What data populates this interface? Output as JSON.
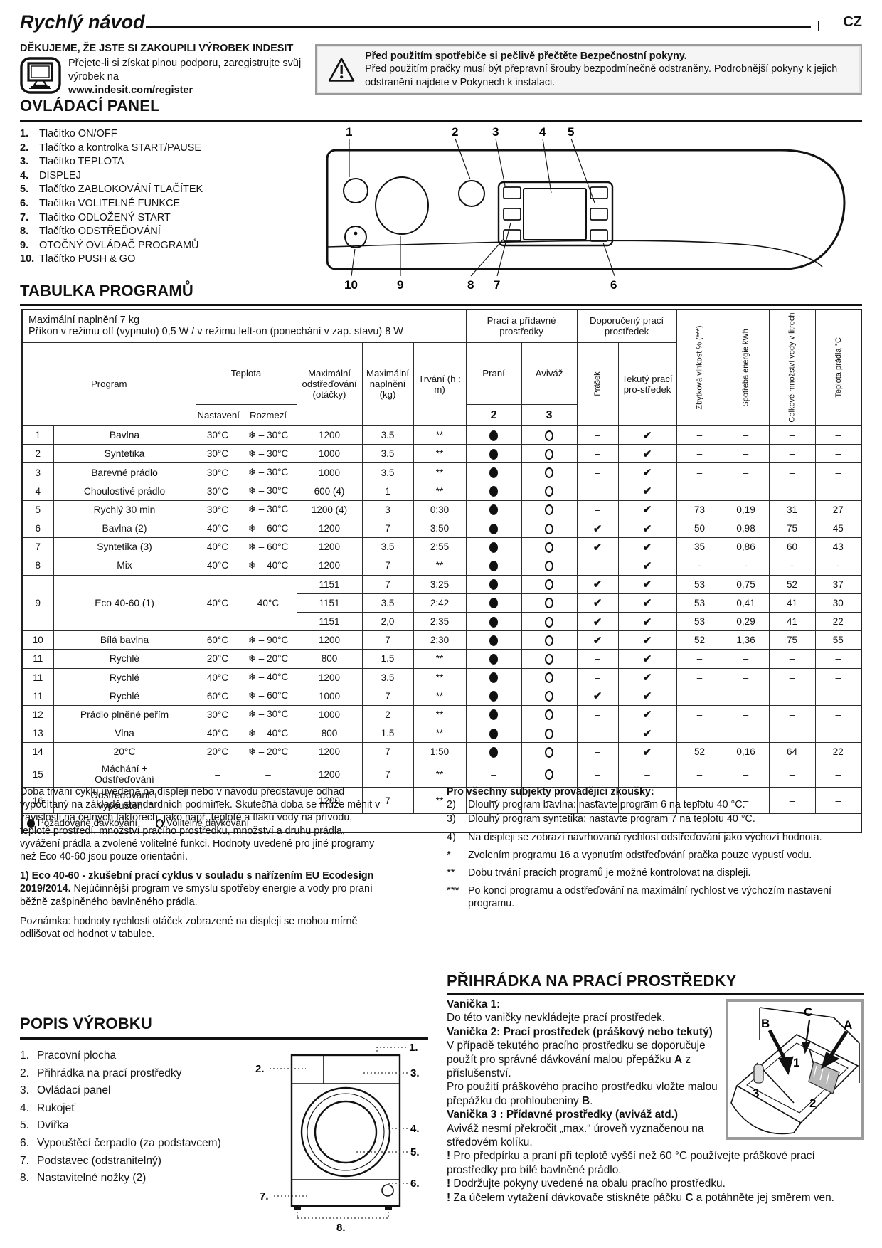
{
  "header": {
    "title": "Rychlý návod",
    "lang": "CZ"
  },
  "intro": {
    "thanks": "DĚKUJEME, ŽE JSTE SI ZAKOUPILI VÝROBEK INDESIT",
    "body": "Přejete-li si získat plnou podporu, zaregistrujte svůj výrobek na",
    "url": "www.indesit.com/register"
  },
  "warning": {
    "title": "Před použitím spotřebiče si pečlivě přečtěte Bezpečnostní pokyny.",
    "body": "Před použitím pračky musí být přepravní šrouby bezpodmínečně odstraněny. Podrobnější pokyny k jejich odstranění najdete v Pokynech k instalaci."
  },
  "control_panel": {
    "heading": "OVLÁDACÍ PANEL",
    "items": [
      {
        "num": "1.",
        "label": "Tlačítko ON/OFF"
      },
      {
        "num": "2.",
        "label": "Tlačítko a kontrolka START/PAUSE"
      },
      {
        "num": "3.",
        "label": "Tlačítko TEPLOTA"
      },
      {
        "num": "4.",
        "label": "DISPLEJ"
      },
      {
        "num": "5.",
        "label": "Tlačítko ZABLOKOVÁNÍ TLAČÍTEK"
      },
      {
        "num": "6.",
        "label": "Tlačítka VOLITELNÉ FUNKCE"
      },
      {
        "num": "7.",
        "label": "Tlačítko ODLOŽENÝ START"
      },
      {
        "num": "8.",
        "label": "Tlačítko ODSTŘEĎOVÁNÍ"
      },
      {
        "num": "9.",
        "label": "OTOČNÝ OVLÁDAČ PROGRAMŮ"
      },
      {
        "num": "10.",
        "label": "Tlačítko PUSH & GO"
      }
    ],
    "top_nums": [
      "1",
      "2",
      "3",
      "4",
      "5"
    ],
    "bottom_nums": [
      "10",
      "9",
      "8",
      "7",
      "6"
    ]
  },
  "program_table": {
    "heading": "TABULKA PROGRAMŮ",
    "info1": "Maximální naplnění 7 kg",
    "info2": "Příkon v režimu off (vypnuto) 0,5 W / v režimu left-on (ponechání v zap. stavu) 8 W",
    "group_detergents": "Prací a přídavné prostředky",
    "group_recommended": "Doporučený prací prostředek",
    "col_program": "Program",
    "col_temp": "Teplota",
    "col_temp_set": "Nastavení",
    "col_temp_range": "Rozmezí",
    "col_spin": "Maximální odstřeďování (otáčky)",
    "col_load": "Maximální naplnění (kg)",
    "col_duration": "Trvání (h : m)",
    "col_wash": "Praní",
    "col_wash_num": "2",
    "col_softener": "Aviváž",
    "col_softener_num": "3",
    "col_powder": "Prášek",
    "col_liquid": "Tekutý prací pro-středek",
    "col_humidity": "Zbytková vlhkost % (***)",
    "col_energy": "Spotřeba energie kWh",
    "col_water": "Celkové množství vody v litrech",
    "col_laundry_temp": "Teplota prádla °C",
    "rows": [
      {
        "num": "1",
        "name": "Bavlna",
        "set": "30°C",
        "range": "❄ – 30°C",
        "spin": "1200",
        "load": "3.5",
        "dur": "**",
        "wash": "●",
        "soft": "○",
        "powder": "–",
        "liquid": "✔",
        "vals": [
          "–",
          "–",
          "–",
          "–"
        ]
      },
      {
        "num": "2",
        "name": "Syntetika",
        "set": "30°C",
        "range": "❄ – 30°C",
        "spin": "1000",
        "load": "3.5",
        "dur": "**",
        "wash": "●",
        "soft": "○",
        "powder": "–",
        "liquid": "✔",
        "vals": [
          "–",
          "–",
          "–",
          "–"
        ]
      },
      {
        "num": "3",
        "name": "Barevné prádlo",
        "set": "30°C",
        "range": "❄ – 30°C",
        "spin": "1000",
        "load": "3.5",
        "dur": "**",
        "wash": "●",
        "soft": "○",
        "powder": "–",
        "liquid": "✔",
        "vals": [
          "–",
          "–",
          "–",
          "–"
        ]
      },
      {
        "num": "4",
        "name": "Choulostivé prádlo",
        "set": "30°C",
        "range": "❄ – 30°C",
        "spin": "600 (4)",
        "load": "1",
        "dur": "**",
        "wash": "●",
        "soft": "○",
        "powder": "–",
        "liquid": "✔",
        "vals": [
          "–",
          "–",
          "–",
          "–"
        ]
      },
      {
        "num": "5",
        "name": "Rychlý 30 min",
        "set": "30°C",
        "range": "❄ – 30°C",
        "spin": "1200 (4)",
        "load": "3",
        "dur": "0:30",
        "wash": "●",
        "soft": "○",
        "powder": "–",
        "liquid": "✔",
        "vals": [
          "73",
          "0,19",
          "31",
          "27"
        ]
      },
      {
        "num": "6",
        "name": "Bavlna (2)",
        "set": "40°C",
        "range": "❄ – 60°C",
        "spin": "1200",
        "load": "7",
        "dur": "3:50",
        "wash": "●",
        "soft": "○",
        "powder": "✔",
        "liquid": "✔",
        "vals": [
          "50",
          "0,98",
          "75",
          "45"
        ]
      },
      {
        "num": "7",
        "name": "Syntetika (3)",
        "set": "40°C",
        "range": "❄ – 60°C",
        "spin": "1200",
        "load": "3.5",
        "dur": "2:55",
        "wash": "●",
        "soft": "○",
        "powder": "✔",
        "liquid": "✔",
        "vals": [
          "35",
          "0,86",
          "60",
          "43"
        ]
      },
      {
        "num": "8",
        "name": "Mix",
        "set": "40°C",
        "range": "❄ – 40°C",
        "spin": "1200",
        "load": "7",
        "dur": "**",
        "wash": "●",
        "soft": "○",
        "powder": "–",
        "liquid": "✔",
        "vals": [
          "-",
          "-",
          "-",
          "-"
        ]
      },
      {
        "num": "9",
        "name": "Eco 40-60 (1)",
        "set": "40°C",
        "range": "40°C",
        "variants": [
          {
            "spin": "1151",
            "load": "7",
            "dur": "3:25",
            "wash": "●",
            "soft": "○",
            "powder": "✔",
            "liquid": "✔",
            "vals": [
              "53",
              "0,75",
              "52",
              "37"
            ]
          },
          {
            "spin": "1151",
            "load": "3.5",
            "dur": "2:42",
            "wash": "●",
            "soft": "○",
            "powder": "✔",
            "liquid": "✔",
            "vals": [
              "53",
              "0,41",
              "41",
              "30"
            ]
          },
          {
            "spin": "1151",
            "load": "2,0",
            "dur": "2:35",
            "wash": "●",
            "soft": "○",
            "powder": "✔",
            "liquid": "✔",
            "vals": [
              "53",
              "0,29",
              "41",
              "22"
            ]
          }
        ]
      },
      {
        "num": "10",
        "name": "Bílá bavlna",
        "set": "60°C",
        "range": "❄ – 90°C",
        "spin": "1200",
        "load": "7",
        "dur": "2:30",
        "wash": "●",
        "soft": "○",
        "powder": "✔",
        "liquid": "✔",
        "vals": [
          "52",
          "1,36",
          "75",
          "55"
        ]
      },
      {
        "num": "11",
        "name": "Rychlé",
        "set": "20°C",
        "range": "❄ – 20°C",
        "spin": "800",
        "load": "1.5",
        "dur": "**",
        "wash": "●",
        "soft": "○",
        "powder": "–",
        "liquid": "✔",
        "vals": [
          "–",
          "–",
          "–",
          "–"
        ]
      },
      {
        "num": "11",
        "name": "Rychlé",
        "set": "40°C",
        "range": "❄ – 40°C",
        "spin": "1200",
        "load": "3.5",
        "dur": "**",
        "wash": "●",
        "soft": "○",
        "powder": "–",
        "liquid": "✔",
        "vals": [
          "–",
          "–",
          "–",
          "–"
        ]
      },
      {
        "num": "11",
        "name": "Rychlé",
        "set": "60°C",
        "range": "❄ – 60°C",
        "spin": "1000",
        "load": "7",
        "dur": "**",
        "wash": "●",
        "soft": "○",
        "powder": "✔",
        "liquid": "✔",
        "vals": [
          "–",
          "–",
          "–",
          "–"
        ]
      },
      {
        "num": "12",
        "name": "Prádlo plněné peřím",
        "set": "30°C",
        "range": "❄ – 30°C",
        "spin": "1000",
        "load": "2",
        "dur": "**",
        "wash": "●",
        "soft": "○",
        "powder": "–",
        "liquid": "✔",
        "vals": [
          "–",
          "–",
          "–",
          "–"
        ]
      },
      {
        "num": "13",
        "name": "Vlna",
        "set": "40°C",
        "range": "❄ – 40°C",
        "spin": "800",
        "load": "1.5",
        "dur": "**",
        "wash": "●",
        "soft": "○",
        "powder": "–",
        "liquid": "✔",
        "vals": [
          "–",
          "–",
          "–",
          "–"
        ]
      },
      {
        "num": "14",
        "name": "20°C",
        "set": "20°C",
        "range": "❄ – 20°C",
        "spin": "1200",
        "load": "7",
        "dur": "1:50",
        "wash": "●",
        "soft": "○",
        "powder": "–",
        "liquid": "✔",
        "vals": [
          "52",
          "0,16",
          "64",
          "22"
        ]
      },
      {
        "num": "15",
        "name": "Máchání +",
        "name2": "Odstřeďování",
        "set": "–",
        "range": "–",
        "spin": "1200",
        "load": "7",
        "dur": "**",
        "wash": "–",
        "soft": "○",
        "powder": "–",
        "liquid": "–",
        "vals": [
          "–",
          "–",
          "–",
          "–"
        ]
      },
      {
        "num": "16",
        "name": "Odstřeďování +",
        "name2": "Vypouštění *",
        "set": "–",
        "range": "–",
        "spin": "1200",
        "load": "7",
        "dur": "**",
        "wash": "–",
        "soft": "–",
        "powder": "–",
        "liquid": "–",
        "vals": [
          "–",
          "–",
          "–",
          "–"
        ]
      }
    ],
    "legend": [
      {
        "sym": "●",
        "label": "Požadované dávkování"
      },
      {
        "sym": "○",
        "label": "Volitelné dávkování"
      }
    ]
  },
  "notes_left": {
    "p1": "Doba trvání cyklu uvedená na displeji nebo v návodu představuje odhad vypočítaný na základě standardních podmínek. Skutečná doba se může měnit v závislosti na četných faktorech, jako např. teplotě a tlaku vody na přívodu, teplotě prostředí, množství pracího prostředku, množství a druhu prádla, vyvážení prádla a zvolené volitelné funkci. Hodnoty uvedené pro jiné programy než Eco 40-60 jsou pouze orientační.",
    "p2_bold": "1) Eco 40-60 - zkušební prací cyklus v souladu s nařízením EU Ecodesign 2019/2014.",
    "p2_rest": " Nejúčinnější program ve smyslu spotřeby energie a vody pro praní běžně zašpiněného bavlněného prádla.",
    "p3": "Poznámka: hodnoty rychlosti otáček zobrazené na displeji se mohou mírně odlišovat od hodnot v tabulce."
  },
  "notes_right": {
    "title": "Pro všechny subjekty provádějící zkoušky:",
    "items": [
      {
        "marker": "2)",
        "star": false,
        "sp": false,
        "text": "Dlouhý program bavlna: nastavte program 6 na teplotu 40 °C."
      },
      {
        "marker": "3)",
        "star": false,
        "sp": false,
        "text": "Dlouhý program syntetika: nastavte program 7 na teplotu 40 °C."
      },
      {
        "marker": "4)",
        "star": false,
        "sp": true,
        "text": "Na displeji se zobrazí navrhovaná rychlost odstřeďování jako výchozí hodnota."
      },
      {
        "marker": "*",
        "star": true,
        "sp": true,
        "text": "Zvolením programu 16 a vypnutím odstřeďování pračka pouze vypustí vodu."
      },
      {
        "marker": "**",
        "star": true,
        "sp": true,
        "text": "Dobu trvání pracích programů je možné kontrolovat na displeji."
      },
      {
        "marker": "***",
        "star": true,
        "sp": true,
        "text": "Po konci programu a odstřeďování na maximální rychlost ve výchozím nastavení programu."
      }
    ]
  },
  "product": {
    "heading": "POPIS VÝROBKU",
    "labels": [
      "1.",
      "2.",
      "3.",
      "4.",
      "5.",
      "6.",
      "7.",
      "8."
    ],
    "items": [
      "Pracovní plocha",
      "Přihrádka na prací prostředky",
      "Ovládací panel",
      "Rukojeť",
      "Dvířka",
      "Vypouštěcí čerpadlo (za podstavcem)",
      "Podstavec (odstranitelný)",
      "Nastavitelné nožky (2)"
    ]
  },
  "detergent": {
    "heading": "PŘIHRÁDKA NA PRACÍ PROSTŘEDKY",
    "lines": [
      [
        {
          "t": "Vanička 1:",
          "b": true
        }
      ],
      [
        {
          "t": "Do této vaničky nevkládejte prací prostředek.",
          "b": false
        }
      ],
      [
        {
          "t": "Vanička 2: Prací prostředek (práškový nebo tekutý)",
          "b": true
        }
      ],
      [
        {
          "t": "V případě tekutého pracího prostředku se doporučuje použít pro správné dávkování malou přepážku ",
          "b": false
        },
        {
          "t": "A",
          "b": true
        },
        {
          "t": " z příslušenství.",
          "b": false
        }
      ],
      [
        {
          "t": "Pro použití práškového pracího prostředku vložte malou přepážku do prohloubeniny ",
          "b": false
        },
        {
          "t": "B",
          "b": true
        },
        {
          "t": ".",
          "b": false
        }
      ],
      [
        {
          "t": "Vanička 3 : Přídavné prostředky (aviváž atd.)",
          "b": true
        }
      ],
      [
        {
          "t": "Aviváž nesmí překročit „max.“ úroveň vyznačenou na středovém kolíku.",
          "b": false
        }
      ],
      [
        {
          "t": "! ",
          "b": true
        },
        {
          "t": "Pro předpírku a praní při teplotě vyšší než 60 °C používejte práškové prací prostředky pro bílé bavlněné prádlo.",
          "b": false
        }
      ],
      [
        {
          "t": "! ",
          "b": true
        },
        {
          "t": "Dodržujte pokyny uvedené na obalu pracího prostředku.",
          "b": false
        }
      ],
      [
        {
          "t": "! ",
          "b": true
        },
        {
          "t": "Za účelem vytažení dávkovače stiskněte páčku ",
          "b": false
        },
        {
          "t": "C",
          "b": true
        },
        {
          "t": " a potáhněte jej směrem ven.",
          "b": false
        }
      ]
    ],
    "diagram_labels": {
      "a": "A",
      "b": "B",
      "c": "C",
      "n1": "1",
      "n2": "2",
      "n3": "3"
    }
  }
}
